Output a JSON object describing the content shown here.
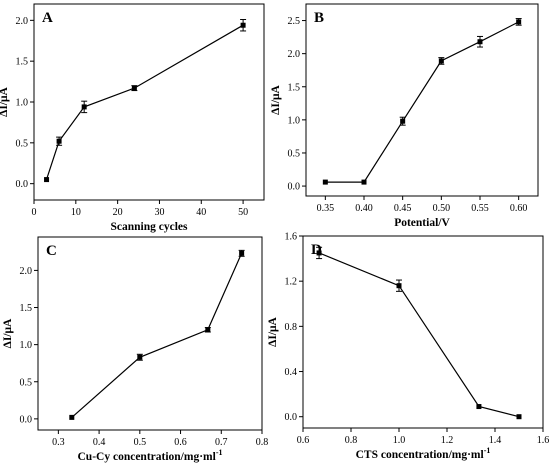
{
  "chart_data": [
    {
      "type": "line",
      "panel_label": "A",
      "xlabel": "Scanning cycles",
      "ylabel": "ΔI/μA",
      "xlim": [
        0,
        55
      ],
      "ylim": [
        -0.2,
        2.2
      ],
      "xticks": [
        0,
        10,
        20,
        30,
        40,
        50
      ],
      "xtick_labels": [
        "0",
        "10",
        "20",
        "30",
        "40",
        "50"
      ],
      "yticks": [
        0.0,
        0.5,
        1.0,
        1.5,
        2.0
      ],
      "ytick_labels": [
        "0.0",
        "0.5",
        "1.0",
        "1.5",
        "2.0"
      ],
      "grid": false,
      "series": [
        {
          "x": [
            3,
            6,
            12,
            24,
            50
          ],
          "y": [
            0.05,
            0.52,
            0.94,
            1.17,
            1.94
          ],
          "err": [
            0.0,
            0.05,
            0.07,
            0.03,
            0.07
          ]
        }
      ]
    },
    {
      "type": "line",
      "panel_label": "B",
      "xlabel": "Potential/V",
      "ylabel": "ΔI/μA",
      "xlim": [
        0.325,
        0.625
      ],
      "ylim": [
        -0.15,
        2.75
      ],
      "xticks": [
        0.35,
        0.4,
        0.45,
        0.5,
        0.55,
        0.6
      ],
      "xtick_labels": [
        "0.35",
        "0.40",
        "0.45",
        "0.50",
        "0.55",
        "0.60"
      ],
      "yticks": [
        0.0,
        0.5,
        1.0,
        1.5,
        2.0,
        2.5
      ],
      "ytick_labels": [
        "0.0",
        "0.5",
        "1.0",
        "1.5",
        "2.0",
        "2.5"
      ],
      "grid": false,
      "series": [
        {
          "x": [
            0.35,
            0.4,
            0.45,
            0.5,
            0.55,
            0.6
          ],
          "y": [
            0.06,
            0.06,
            0.98,
            1.89,
            2.18,
            2.48
          ],
          "err": [
            0.0,
            0.0,
            0.06,
            0.05,
            0.08,
            0.05
          ]
        }
      ]
    },
    {
      "type": "line",
      "panel_label": "C",
      "xlabel": "Cu-Cy concentration/mg·ml",
      "xlabel_sup": "-1",
      "ylabel": "ΔI/μA",
      "xlim": [
        0.25,
        0.8
      ],
      "ylim": [
        -0.15,
        2.45
      ],
      "xticks": [
        0.3,
        0.4,
        0.5,
        0.6,
        0.7,
        0.8
      ],
      "xtick_labels": [
        "0.3",
        "0.4",
        "0.5",
        "0.6",
        "0.7",
        "0.8"
      ],
      "yticks": [
        0.0,
        0.5,
        1.0,
        1.5,
        2.0
      ],
      "ytick_labels": [
        "0.0",
        "0.5",
        "1.0",
        "1.5",
        "2.0"
      ],
      "grid": false,
      "series": [
        {
          "x": [
            0.333,
            0.5,
            0.667,
            0.75
          ],
          "y": [
            0.02,
            0.83,
            1.2,
            2.23
          ],
          "err": [
            0.0,
            0.04,
            0.03,
            0.04
          ]
        }
      ]
    },
    {
      "type": "line",
      "panel_label": "D",
      "xlabel": "CTS concentration/mg·ml",
      "xlabel_sup": "-1",
      "ylabel": "ΔI/μA",
      "xlim": [
        0.6,
        1.6
      ],
      "ylim": [
        -0.1,
        1.6
      ],
      "xticks": [
        0.6,
        0.8,
        1.0,
        1.2,
        1.4,
        1.6
      ],
      "xtick_labels": [
        "0.6",
        "0.8",
        "1.0",
        "1.2",
        "1.4",
        "1.6"
      ],
      "yticks": [
        0.0,
        0.4,
        0.8,
        1.2,
        1.6
      ],
      "ytick_labels": [
        "0.0",
        "0.4",
        "0.8",
        "1.2",
        "1.6"
      ],
      "grid": false,
      "series": [
        {
          "x": [
            0.667,
            1.0,
            1.333,
            1.5
          ],
          "y": [
            1.45,
            1.16,
            0.09,
            0.0
          ],
          "err": [
            0.05,
            0.05,
            0.0,
            0.0
          ]
        }
      ]
    }
  ]
}
